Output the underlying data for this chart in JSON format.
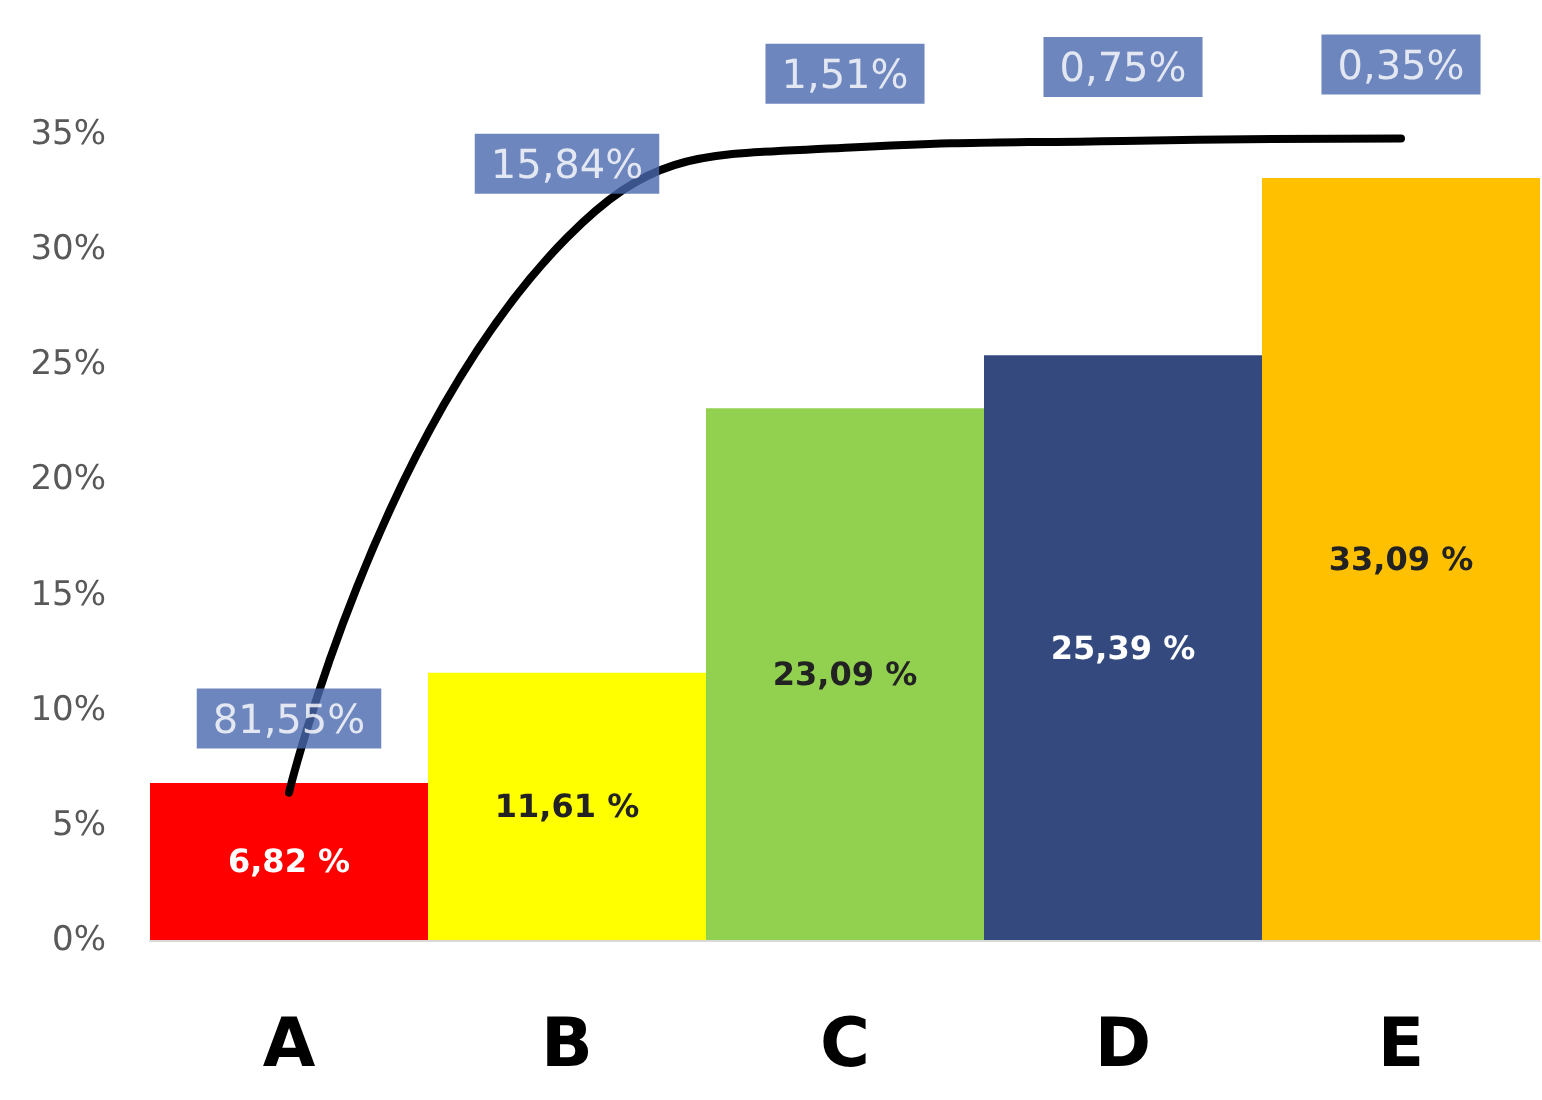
{
  "chart_data": {
    "type": "bar",
    "categories": [
      "A",
      "B",
      "C",
      "D",
      "E"
    ],
    "ylim": [
      0,
      35
    ],
    "yticks": [
      {
        "value": 0,
        "label": "0%"
      },
      {
        "value": 5,
        "label": "5%"
      },
      {
        "value": 10,
        "label": "10%"
      },
      {
        "value": 15,
        "label": "15%"
      },
      {
        "value": 20,
        "label": "20%"
      },
      {
        "value": 25,
        "label": "25%"
      },
      {
        "value": 30,
        "label": "30%"
      },
      {
        "value": 35,
        "label": "35%"
      }
    ],
    "marker": "none",
    "line_style": "solid",
    "series": [
      {
        "colors": [
          "#ff0000",
          "#ffff00",
          "#92d050",
          "#344a7f",
          "#ffc000"
        ],
        "values": [
          6.82,
          11.61,
          23.09,
          25.39,
          33.09
        ],
        "value_labels": [
          "6,82 %",
          "11,61 %",
          "23,09 %",
          "25,39 %",
          "33,09 %"
        ]
      },
      {
        "type": "line",
        "color": "#000000",
        "values": [
          6.4,
          30.5,
          34.4,
          34.7,
          34.8
        ]
      }
    ],
    "annotations": [
      {
        "text": "81,55%",
        "x": "A",
        "y": 6.4
      },
      {
        "text": "15,84%",
        "x": "B",
        "y": 30.5
      },
      {
        "text": "1,51%",
        "x": "C",
        "y": 34.4
      },
      {
        "text": "0,75%",
        "x": "D",
        "y": 34.7
      },
      {
        "text": "0,35%",
        "x": "E",
        "y": 34.8
      }
    ]
  }
}
